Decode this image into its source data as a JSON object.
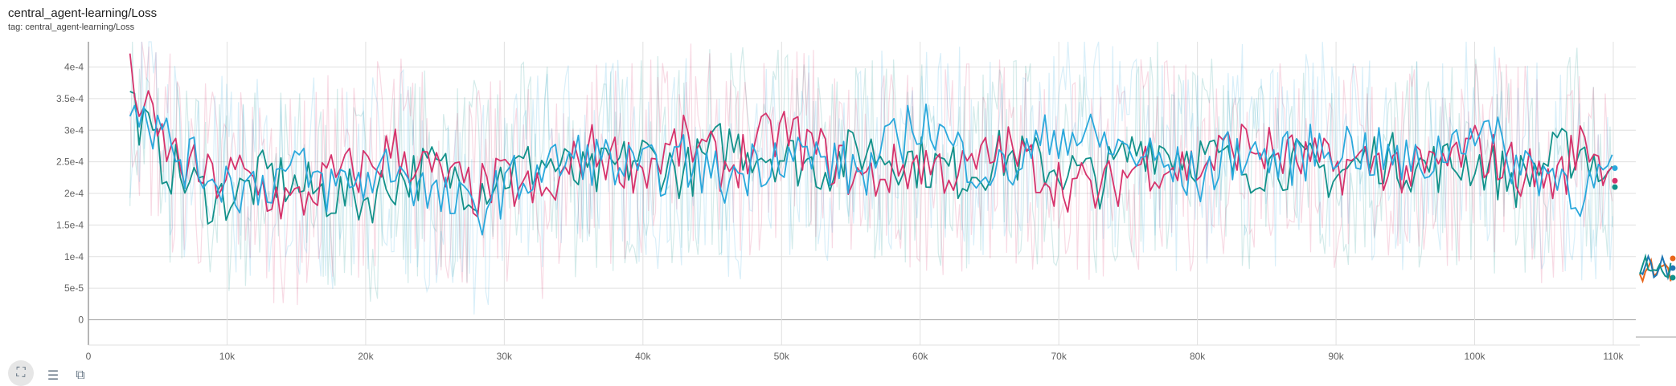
{
  "card": {
    "title": "central_agent-learning/Loss",
    "subtitle": "tag: central_agent-learning/Loss"
  },
  "toolbar": {
    "expand_icon": "fit-screen-icon",
    "menu_icon": "menu-lines-icon",
    "zoom_icon": "zoom-box-icon"
  },
  "colors": {
    "grid": "#e0e0e0",
    "axis": "#9e9e9e",
    "teal": "#12918a",
    "magenta": "#d6336c",
    "sky": "#2aa8dc"
  },
  "chart_data": {
    "type": "line",
    "title": "central_agent-learning/Loss",
    "xlabel": "",
    "ylabel": "",
    "xlim": [
      0,
      110000
    ],
    "ylim": [
      -4e-05,
      0.00044
    ],
    "x_ticks": [
      0,
      10000,
      20000,
      30000,
      40000,
      50000,
      60000,
      70000,
      80000,
      90000,
      100000,
      110000
    ],
    "x_tick_labels": [
      "0",
      "10k",
      "20k",
      "30k",
      "40k",
      "50k",
      "60k",
      "70k",
      "80k",
      "90k",
      "100k",
      "110k"
    ],
    "y_ticks": [
      0,
      5e-05,
      0.0001,
      0.00015,
      0.0002,
      0.00025,
      0.0003,
      0.00035,
      0.0004
    ],
    "y_tick_labels": [
      "0",
      "5e-5",
      "1e-4",
      "1.5e-4",
      "2e-4",
      "2.5e-4",
      "3e-4",
      "3.5e-4",
      "4e-4"
    ],
    "grid": true,
    "series": [
      {
        "color": "#12918a",
        "x": [
          3000,
          5000,
          7000,
          9000,
          11000,
          13000,
          15000,
          17000,
          20000,
          22000,
          25000,
          28000,
          30000,
          33000,
          36000,
          40000,
          43000,
          46000,
          50000,
          53000,
          56000,
          60000,
          63000,
          66000,
          70000,
          73000,
          76000,
          80000,
          83000,
          86000,
          90000,
          93000,
          96000,
          100000,
          103000,
          106000,
          108000,
          110000
        ],
        "values": [
          0.00035,
          0.00026,
          0.00022,
          0.00019,
          0.0002,
          0.00023,
          0.00021,
          0.0002,
          0.00019,
          0.00022,
          0.00024,
          0.00021,
          0.00023,
          0.00025,
          0.00022,
          0.00026,
          0.00023,
          0.00028,
          0.00026,
          0.00024,
          0.00027,
          0.00025,
          0.00023,
          0.00026,
          0.00024,
          0.00022,
          0.00028,
          0.00026,
          0.00024,
          0.00025,
          0.00023,
          0.00026,
          0.00024,
          0.00025,
          0.00022,
          0.00026,
          0.00027,
          0.00021
        ]
      },
      {
        "color": "#d6336c",
        "x": [
          3000,
          5000,
          7000,
          9000,
          11000,
          13000,
          15000,
          17000,
          20000,
          22000,
          25000,
          28000,
          30000,
          33000,
          36000,
          40000,
          43000,
          46000,
          50000,
          53000,
          56000,
          60000,
          63000,
          66000,
          70000,
          73000,
          76000,
          80000,
          83000,
          86000,
          90000,
          93000,
          96000,
          100000,
          103000,
          106000,
          108000,
          110000
        ],
        "values": [
          0.00038,
          0.00029,
          0.00024,
          0.00022,
          0.00023,
          0.0002,
          0.00018,
          0.00022,
          0.00024,
          0.00027,
          0.00023,
          0.0002,
          0.00022,
          0.00019,
          0.00027,
          0.00024,
          0.00028,
          0.00024,
          0.0003,
          0.00026,
          0.00022,
          0.00025,
          0.00023,
          0.00027,
          0.00022,
          0.0002,
          0.00025,
          0.00024,
          0.00028,
          0.00026,
          0.00024,
          0.00025,
          0.00023,
          0.00027,
          0.00024,
          0.00022,
          0.00029,
          0.00022
        ]
      },
      {
        "color": "#2aa8dc",
        "x": [
          3000,
          5000,
          7000,
          9000,
          11000,
          13000,
          15000,
          17000,
          20000,
          22000,
          25000,
          28000,
          30000,
          33000,
          36000,
          40000,
          43000,
          46000,
          50000,
          53000,
          56000,
          60000,
          63000,
          66000,
          70000,
          73000,
          76000,
          80000,
          83000,
          86000,
          90000,
          93000,
          96000,
          100000,
          103000,
          106000,
          108000,
          110000
        ],
        "values": [
          0.00036,
          0.0003,
          0.00025,
          0.00023,
          0.00021,
          0.00022,
          0.00024,
          0.00021,
          0.00022,
          0.00025,
          0.00019,
          0.00017,
          0.00021,
          0.00024,
          0.00026,
          0.00023,
          0.00025,
          0.00022,
          0.00027,
          0.00025,
          0.00023,
          0.00032,
          0.00026,
          0.00023,
          0.0003,
          0.00028,
          0.00026,
          0.00022,
          0.00027,
          0.00025,
          0.00028,
          0.00026,
          0.00024,
          0.00031,
          0.00025,
          0.00023,
          0.0002,
          0.00024
        ]
      }
    ]
  }
}
